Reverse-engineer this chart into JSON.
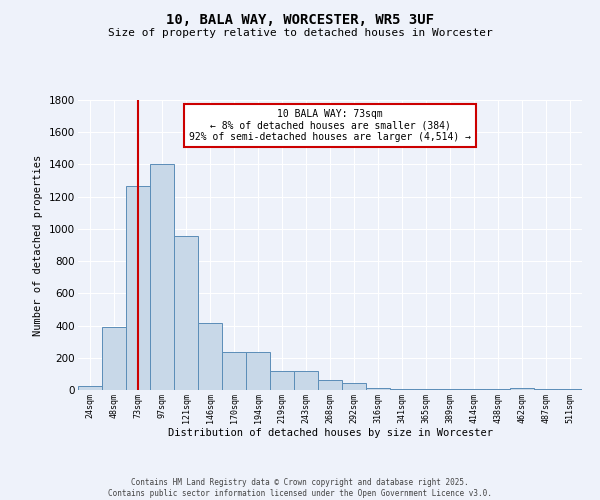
{
  "title": "10, BALA WAY, WORCESTER, WR5 3UF",
  "subtitle": "Size of property relative to detached houses in Worcester",
  "xlabel": "Distribution of detached houses by size in Worcester",
  "ylabel": "Number of detached properties",
  "categories": [
    "24sqm",
    "48sqm",
    "73sqm",
    "97sqm",
    "121sqm",
    "146sqm",
    "170sqm",
    "194sqm",
    "219sqm",
    "243sqm",
    "268sqm",
    "292sqm",
    "316sqm",
    "341sqm",
    "365sqm",
    "389sqm",
    "414sqm",
    "438sqm",
    "462sqm",
    "487sqm",
    "511sqm"
  ],
  "values": [
    25,
    390,
    1265,
    1400,
    955,
    415,
    235,
    235,
    115,
    115,
    65,
    45,
    15,
    5,
    5,
    5,
    5,
    5,
    15,
    5,
    5
  ],
  "bar_color": "#c8d8e8",
  "bar_edge_color": "#5b8db8",
  "red_line_x": 2,
  "annotation_text": "10 BALA WAY: 73sqm\n← 8% of detached houses are smaller (384)\n92% of semi-detached houses are larger (4,514) →",
  "annotation_box_color": "#ffffff",
  "annotation_box_edge_color": "#cc0000",
  "background_color": "#eef2fa",
  "grid_color": "#ffffff",
  "ylim": [
    0,
    1800
  ],
  "yticks": [
    0,
    200,
    400,
    600,
    800,
    1000,
    1200,
    1400,
    1600,
    1800
  ],
  "footer_line1": "Contains HM Land Registry data © Crown copyright and database right 2025.",
  "footer_line2": "Contains public sector information licensed under the Open Government Licence v3.0."
}
